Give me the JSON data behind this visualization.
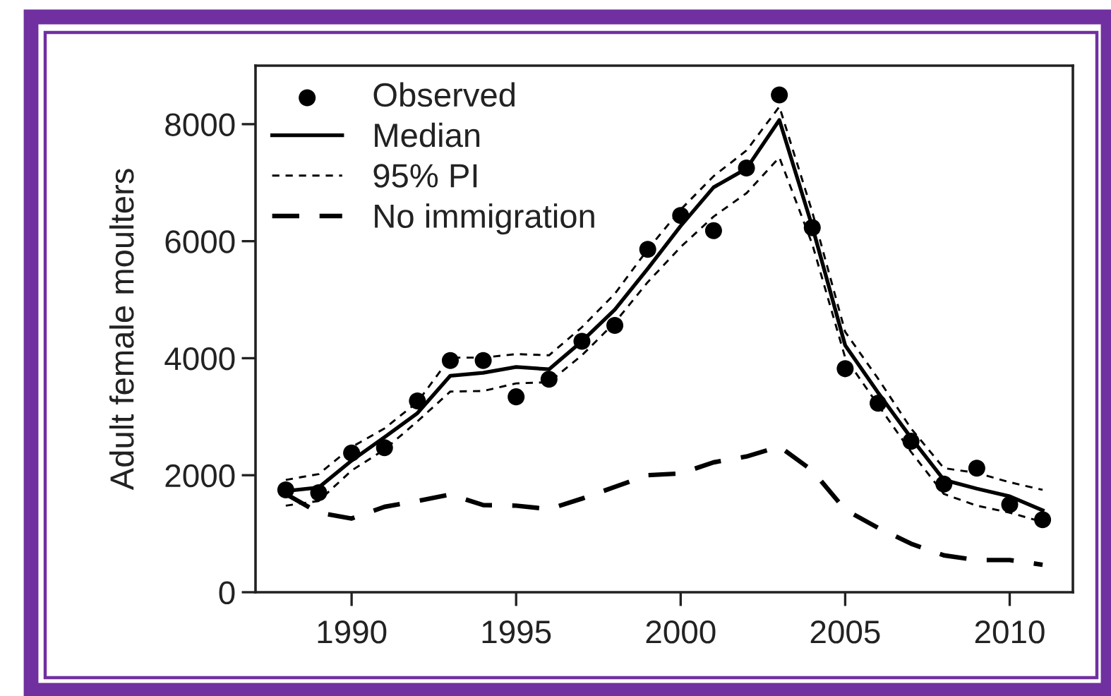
{
  "chart_data": {
    "type": "line",
    "ylabel": "Adult female moulters",
    "x": [
      1988,
      1989,
      1990,
      1991,
      1992,
      1993,
      1994,
      1995,
      1996,
      1997,
      1998,
      1999,
      2000,
      2001,
      2002,
      2003,
      2004,
      2005,
      2006,
      2007,
      2008,
      2009,
      2010,
      2011
    ],
    "series": [
      {
        "name": "Observed",
        "type": "scatter",
        "marker": "circle",
        "color": "#000000",
        "values": [
          1750,
          1700,
          2380,
          2470,
          3270,
          3960,
          3960,
          3340,
          3640,
          4290,
          4560,
          5860,
          6440,
          6180,
          7250,
          8500,
          6230,
          3820,
          3230,
          2580,
          1850,
          2120,
          1500,
          1240
        ]
      },
      {
        "name": "Median",
        "line_style": "solid",
        "color": "#000000",
        "values": [
          1730,
          1790,
          2250,
          2650,
          3060,
          3700,
          3750,
          3850,
          3810,
          4290,
          4830,
          5530,
          6260,
          6920,
          7240,
          8070,
          6250,
          4220,
          3410,
          2640,
          1920,
          1770,
          1640,
          1400
        ]
      },
      {
        "name": "95% PI",
        "line_style": "dotted",
        "color": "#000000",
        "values": [
          1920,
          2020,
          2480,
          2800,
          3250,
          4010,
          4010,
          4070,
          4050,
          4530,
          5100,
          5860,
          6540,
          7110,
          7550,
          8300,
          6500,
          4450,
          3650,
          2800,
          2120,
          2040,
          1880,
          1750
        ]
      },
      {
        "line_style": "dotted",
        "color": "#000000",
        "values": [
          1480,
          1560,
          2080,
          2440,
          2920,
          3430,
          3440,
          3570,
          3590,
          4050,
          4610,
          5300,
          5900,
          6420,
          6820,
          7430,
          5950,
          4010,
          3200,
          2400,
          1680,
          1480,
          1360,
          1200
        ]
      },
      {
        "name": "No immigration",
        "line_style": "dashed",
        "color": "#000000",
        "values": [
          1680,
          1360,
          1260,
          1460,
          1560,
          1670,
          1490,
          1480,
          1420,
          1600,
          1800,
          2000,
          2030,
          2220,
          2320,
          2490,
          2080,
          1410,
          1100,
          830,
          630,
          550,
          550,
          470
        ]
      }
    ],
    "xlim": [
      1987.08,
      2011.92
    ],
    "xticks": [
      1990,
      1995,
      2000,
      2005,
      2010
    ],
    "ylim": [
      0,
      9000
    ],
    "yticks": [
      0,
      2000,
      4000,
      6000,
      8000
    ],
    "legend": "top left"
  }
}
